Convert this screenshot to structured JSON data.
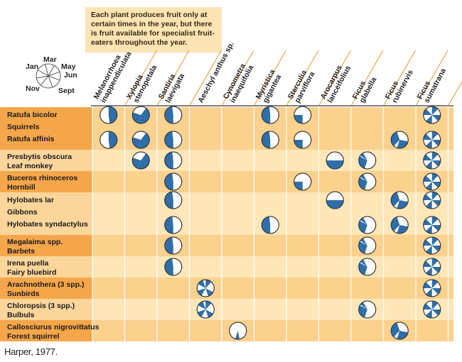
{
  "callout": "Each plant produces fruit only at certain times in the year, but there is fruit available for specialist fruit-eaters throughout the year.",
  "legend": {
    "months": [
      "Jan",
      "Mar",
      "May",
      "Jun",
      "Sept",
      "Nov"
    ]
  },
  "plants": [
    "Melanorrhoea\ninappendiculata",
    "Xylopia\nstenopetala",
    "Santiria\nlaevigata",
    "Aeschyl anthus sp.",
    "Cynometra\ninaequifolia",
    "Myristica\ngigantea",
    "Sterculia\nparviflora",
    "Arocarpus\nlanceifolius",
    "Ficus\nglabella",
    "Ficus\nrubinervis",
    "Ficus\nsumatrana"
  ],
  "groups": [
    {
      "labels": [
        "Ratufa bicolor",
        "Squirrels",
        "Ratufa affinis"
      ]
    },
    {
      "labels": [
        "Presbytis obscura",
        "Leaf monkey"
      ]
    },
    {
      "labels": [
        "Buceros rhinoceros",
        "Hornbill"
      ]
    },
    {
      "labels": [
        "Hylobates lar",
        "Gibbons",
        "Hylobates syndactylus"
      ]
    },
    {
      "labels": [
        "Megalaima spp.",
        "Barbets"
      ]
    },
    {
      "labels": [
        "Irena puella",
        "Fairy bluebird"
      ]
    },
    {
      "labels": [
        "Arachnothera (3 spp.)",
        "Sunbirds"
      ]
    },
    {
      "labels": [
        "Chloropsis (3 spp.)",
        "Bulbuls"
      ]
    },
    {
      "labels": [
        "Callosciurus nigrovittatus",
        "Forest squirrel"
      ]
    }
  ],
  "fruiting_pattern_by_plant": [
    "A",
    "B",
    "C",
    "D",
    "E",
    "C",
    "F",
    "G",
    "H",
    "I",
    "J"
  ],
  "eats": [
    {
      "group": 0,
      "row": 0,
      "plants": [
        0,
        1,
        2,
        5,
        6,
        10
      ]
    },
    {
      "group": 0,
      "row": 2,
      "plants": [
        0,
        1,
        2,
        5,
        6,
        9,
        10
      ]
    },
    {
      "group": 1,
      "row": 0.5,
      "plants": [
        1,
        2,
        7,
        8,
        10
      ]
    },
    {
      "group": 2,
      "row": 0.5,
      "plants": [
        2,
        6,
        8,
        10
      ]
    },
    {
      "group": 3,
      "row": 0,
      "plants": [
        2,
        7,
        9,
        10
      ]
    },
    {
      "group": 3,
      "row": 2,
      "plants": [
        2,
        5,
        8,
        9,
        10
      ]
    },
    {
      "group": 4,
      "row": 0.5,
      "plants": [
        2,
        8,
        10
      ]
    },
    {
      "group": 5,
      "row": 0.5,
      "plants": [
        2,
        8,
        10
      ]
    },
    {
      "group": 6,
      "row": 0.5,
      "plants": [
        3,
        10
      ]
    },
    {
      "group": 7,
      "row": 0.5,
      "plants": [
        3,
        8,
        10
      ]
    },
    {
      "group": 8,
      "row": 0.5,
      "plants": [
        4,
        9
      ]
    }
  ],
  "colors": {
    "label_col_dark": "#f5a64a",
    "label_col_light": "#fbd59a",
    "band_dark": "#fbd18e",
    "band_light": "#fde6b8",
    "fill": "#2f6ea8",
    "accent_line": "#e8962e"
  },
  "caption": "Harper, 1977."
}
